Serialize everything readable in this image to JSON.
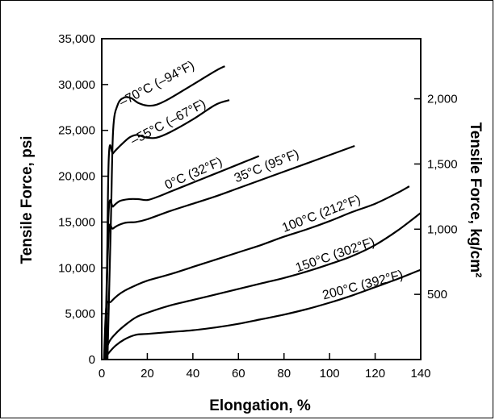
{
  "chart_data": {
    "type": "line",
    "xlabel": "Elongation, %",
    "ylabel": "Tensile Force, psi",
    "y2label": "Tensile Force, kg/cm²",
    "xlim": [
      0,
      140
    ],
    "ylim": [
      0,
      35000
    ],
    "y2lim": [
      0,
      2461
    ],
    "x_ticks": [
      {
        "value": 0,
        "label": "0"
      },
      {
        "value": 20,
        "label": "20"
      },
      {
        "value": 40,
        "label": "40"
      },
      {
        "value": 60,
        "label": "60"
      },
      {
        "value": 80,
        "label": "80"
      },
      {
        "value": 100,
        "label": "100"
      },
      {
        "value": 120,
        "label": "120"
      },
      {
        "value": 140,
        "label": "140"
      }
    ],
    "y_ticks": [
      {
        "value": 0,
        "label": "0"
      },
      {
        "value": 5000,
        "label": "5,000"
      },
      {
        "value": 10000,
        "label": "10,000"
      },
      {
        "value": 15000,
        "label": "15,000"
      },
      {
        "value": 20000,
        "label": "20,000"
      },
      {
        "value": 25000,
        "label": "25,000"
      },
      {
        "value": 30000,
        "label": "30,000"
      },
      {
        "value": 35000,
        "label": "35,000"
      }
    ],
    "y2_ticks": [
      {
        "value": 500,
        "label": "500"
      },
      {
        "value": 1000,
        "label": "1,000"
      },
      {
        "value": 1500,
        "label": "1,500"
      },
      {
        "value": 2000,
        "label": "2,000"
      }
    ],
    "grid": false,
    "series": [
      {
        "name": "–70°C (–94°F)",
        "x": [
          2.5,
          4,
          5,
          7,
          10,
          13,
          16,
          20,
          24,
          30,
          40,
          50,
          54
        ],
        "y": [
          0,
          15000,
          25000,
          27800,
          28600,
          28500,
          28000,
          27700,
          27800,
          28500,
          30000,
          31500,
          32000
        ]
      },
      {
        "name": "–55°C (–67°F)",
        "x": [
          2,
          3,
          5,
          8,
          12,
          15,
          17,
          20,
          24,
          30,
          40,
          50,
          56
        ],
        "y": [
          0,
          21500,
          22500,
          23300,
          24200,
          24500,
          24400,
          24200,
          24200,
          24800,
          26200,
          27800,
          28300
        ]
      },
      {
        "name": "0°C (32°F)",
        "x": [
          1.5,
          3,
          5,
          8,
          12,
          16,
          20,
          25,
          30,
          40,
          50,
          60,
          69
        ],
        "y": [
          0,
          16000,
          16700,
          17300,
          17500,
          17500,
          17400,
          17800,
          18300,
          19300,
          20300,
          21300,
          22200
        ]
      },
      {
        "name": "35°C (95°F)",
        "x": [
          1.5,
          3,
          5,
          10,
          15,
          20,
          30,
          40,
          50,
          60,
          70,
          80,
          90,
          100,
          111
        ],
        "y": [
          0,
          13500,
          14300,
          14900,
          15000,
          15300,
          16200,
          17000,
          17800,
          18700,
          19600,
          20500,
          21400,
          22300,
          23300
        ]
      },
      {
        "name": "100°C (212°F)",
        "x": [
          1,
          2,
          4,
          7,
          10,
          15,
          20,
          30,
          40,
          50,
          60,
          70,
          80,
          90,
          100,
          110,
          120,
          130,
          135
        ],
        "y": [
          0,
          5700,
          6300,
          7000,
          7500,
          8100,
          8600,
          9300,
          10100,
          10900,
          11700,
          12500,
          13400,
          14200,
          15100,
          16100,
          17000,
          18200,
          18900
        ]
      },
      {
        "name": "150°C (302°F)",
        "x": [
          1,
          3,
          6,
          10,
          15,
          20,
          30,
          40,
          50,
          60,
          70,
          80,
          90,
          100,
          110,
          120,
          130,
          140
        ],
        "y": [
          0,
          1800,
          2800,
          3700,
          4600,
          5100,
          5900,
          6500,
          7100,
          7700,
          8300,
          8900,
          9600,
          10400,
          11300,
          12500,
          14100,
          16000
        ]
      },
      {
        "name": "200°C (392°F)",
        "x": [
          1,
          3,
          6,
          10,
          15,
          20,
          30,
          40,
          50,
          60,
          70,
          80,
          90,
          100,
          110,
          120,
          130,
          140
        ],
        "y": [
          0,
          700,
          1500,
          2200,
          2700,
          2800,
          3000,
          3200,
          3500,
          3900,
          4400,
          4900,
          5500,
          6200,
          7000,
          7900,
          8800,
          9800
        ]
      }
    ],
    "labels": [
      {
        "series": 0,
        "text": "–70°C (–94°F)",
        "x": 25,
        "y": 29700,
        "angle": -28
      },
      {
        "series": 1,
        "text": "–55°C (–67°F)",
        "x": 30,
        "y": 25500,
        "angle": -28
      },
      {
        "series": 2,
        "text": "0°C (32°F)",
        "x": 41,
        "y": 19900,
        "angle": -24
      },
      {
        "series": 3,
        "text": "35°C (95°F)",
        "x": 73,
        "y": 20700,
        "angle": -22
      },
      {
        "series": 4,
        "text": "100°C (212°F)",
        "x": 97,
        "y": 15500,
        "angle": -21
      },
      {
        "series": 5,
        "text": "150°C (302°F)",
        "x": 103,
        "y": 11000,
        "angle": -19
      },
      {
        "series": 6,
        "text": "200°C (392°F)",
        "x": 115,
        "y": 7700,
        "angle": -15
      }
    ]
  }
}
